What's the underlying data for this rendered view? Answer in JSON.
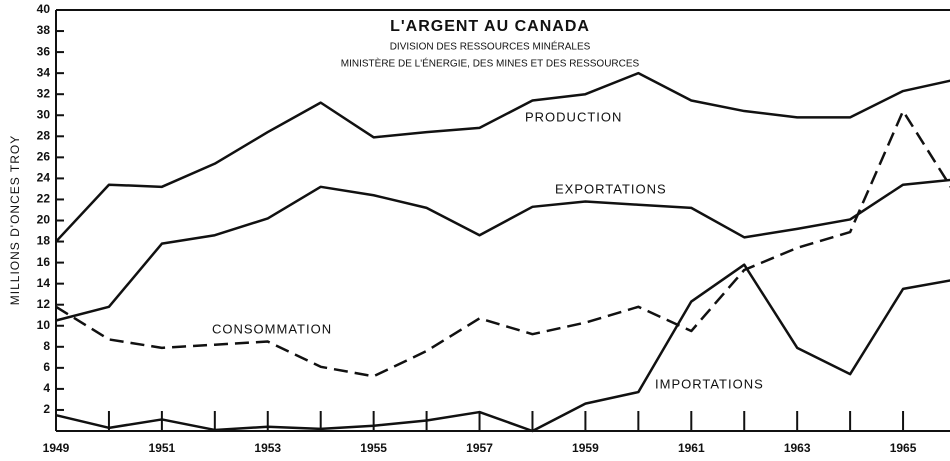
{
  "chart_data": {
    "type": "line",
    "title": "L'ARGENT AU CANADA",
    "subtitle": [
      "DIVISION DES RESSOURCES MINÉRALES",
      "MINISTÈRE DE L'ÉNERGIE, DES MINES ET DES RESSOURCES"
    ],
    "y_label": "MILLIONS D'ONCES TROY",
    "x": [
      1949,
      1950,
      1951,
      1952,
      1953,
      1954,
      1955,
      1956,
      1957,
      1958,
      1959,
      1960,
      1961,
      1962,
      1963,
      1964,
      1965,
      1966
    ],
    "series": [
      {
        "name": "PRODUCTION",
        "color": "#111",
        "dash": false,
        "values": [
          18,
          23.4,
          23.2,
          25.4,
          28.4,
          31.2,
          27.9,
          28.4,
          28.8,
          31.4,
          32,
          34,
          31.4,
          30.4,
          29.8,
          29.8,
          32.3,
          33.4
        ]
      },
      {
        "name": "EXPORTATIONS",
        "color": "#111",
        "dash": false,
        "values": [
          10.5,
          11.8,
          17.8,
          18.6,
          20.2,
          23.2,
          22.4,
          21.2,
          18.6,
          21.3,
          21.8,
          21.5,
          21.2,
          18.4,
          19.2,
          20.1,
          23.4,
          23.9
        ]
      },
      {
        "name": "CONSOMMATION",
        "color": "#111",
        "dash": true,
        "values": [
          11.8,
          8.7,
          7.9,
          8.2,
          8.5,
          6.1,
          5.2,
          7.6,
          10.7,
          9.2,
          10.3,
          11.8,
          9.5,
          15.3,
          17.4,
          18.9,
          30.4,
          22.4
        ]
      },
      {
        "name": "IMPORTATIONS",
        "color": "#111",
        "dash": false,
        "values": [
          1.5,
          0.3,
          1.1,
          0.1,
          0.4,
          0.2,
          0.5,
          1.0,
          1.8,
          0,
          2.6,
          3.7,
          12.3,
          15.8,
          7.9,
          5.4,
          13.5,
          14.4
        ]
      }
    ],
    "xlim": [
      1949,
      1966
    ],
    "xticks": [
      1949,
      1951,
      1953,
      1955,
      1957,
      1959,
      1961,
      1963,
      1965
    ],
    "minor_xticks": [
      1950,
      1952,
      1954,
      1956,
      1958,
      1960,
      1962,
      1964
    ],
    "ylim": [
      0,
      40
    ],
    "yticks": [
      2,
      4,
      6,
      8,
      10,
      12,
      14,
      16,
      18,
      20,
      22,
      24,
      26,
      28,
      30,
      32,
      34,
      36,
      38,
      40
    ]
  }
}
